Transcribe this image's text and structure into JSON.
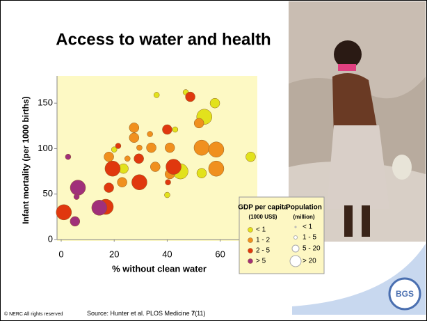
{
  "chart_data": {
    "type": "bubble",
    "title": "Access to water and health",
    "x_label": "% without clean water",
    "y_label": "Infant mortality (per 1000 births)",
    "xlim": [
      0,
      74
    ],
    "ylim": [
      0,
      180
    ],
    "xticks": [
      0,
      20,
      40,
      60
    ],
    "yticks": [
      0,
      50,
      100,
      150
    ],
    "legend_title": "GDP per capita",
    "legend_subtitle": "(1000 US$)",
    "size_legend_title": "Population",
    "size_legend_subtitle": "(million)",
    "size_legend_labels": [
      "< 1",
      "1 - 5",
      "5 - 20",
      "> 20"
    ],
    "series": [
      {
        "name": "< 1",
        "color": "#e2e21c",
        "x": [
          36,
          47,
          58,
          43,
          54,
          23.5,
          45,
          53,
          71.5,
          20,
          40
        ],
        "values": [
          159,
          162,
          150,
          121,
          135,
          78,
          75,
          73,
          91,
          99,
          49
        ],
        "population": [
          3,
          3,
          12,
          3,
          40,
          12,
          40,
          12,
          12,
          3,
          3
        ]
      },
      {
        "name": "1 - 2",
        "color": "#f0901e",
        "x": [
          27.5,
          33.5,
          27.5,
          29.5,
          18,
          25,
          34,
          41,
          53,
          58.5,
          58.5,
          35.5,
          41,
          23,
          52
        ],
        "values": [
          123,
          116,
          112,
          101,
          91,
          89,
          101,
          101,
          101,
          99,
          78,
          80,
          72,
          63,
          128
        ],
        "population": [
          12,
          3,
          12,
          3,
          12,
          3,
          12,
          12,
          40,
          40,
          40,
          12,
          12,
          12,
          12
        ]
      },
      {
        "name": "2 - 5",
        "color": "#e0380e",
        "x": [
          48.7,
          40,
          21.5,
          29.3,
          19.4,
          42.4,
          18,
          29.5,
          1,
          16.8,
          40.3
        ],
        "values": [
          157,
          121,
          103,
          89,
          78,
          80,
          57,
          63,
          30,
          36,
          63
        ],
        "population": [
          12,
          12,
          3,
          12,
          40,
          40,
          12,
          40,
          40,
          40,
          3
        ]
      },
      {
        "name": "> 5",
        "color": "#a0307a",
        "x": [
          6.3,
          2.6,
          5.8,
          5.2,
          14.4
        ],
        "values": [
          57,
          91,
          47,
          20,
          35
        ],
        "population": [
          40,
          3,
          3,
          12,
          40
        ]
      }
    ]
  },
  "footer": {
    "copyright": "© NERC All rights reserved",
    "source_prefix": "Source: Hunter et al. PLOS Medicine ",
    "source_volume": "7",
    "source_issue": "(11)",
    "logo": "BGS"
  }
}
